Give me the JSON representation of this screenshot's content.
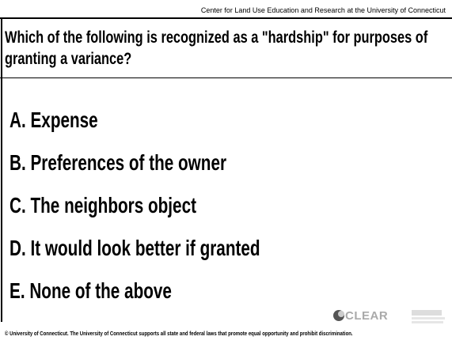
{
  "header": {
    "source": "Center for Land Use Education and Research at the University of Connecticut"
  },
  "question": "Which of the following is recognized as a \"hardship\" for purposes of granting a variance?",
  "options": [
    "A. Expense",
    "B. Preferences of the owner",
    "C. The neighbors object",
    "D. It would look better if granted",
    "E. None of the above"
  ],
  "footer": {
    "text": "© University of Connecticut. The University of Connecticut supports all state and federal laws that promote equal opportunity and prohibit discrimination.",
    "logo": "CLEAR"
  }
}
